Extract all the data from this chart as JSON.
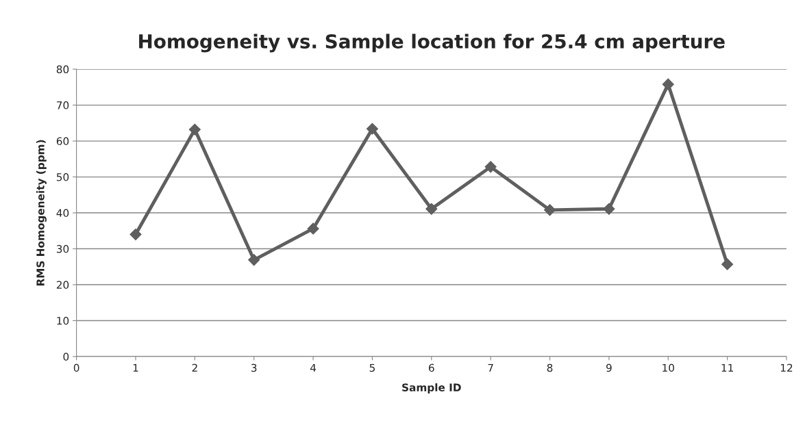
{
  "chart_data": {
    "type": "line",
    "title": "Homogeneity vs. Sample location for 25.4 cm aperture",
    "xlabel": "Sample ID",
    "ylabel": "RMS Homogeneity (ppm)",
    "x": [
      1,
      2,
      3,
      4,
      5,
      6,
      7,
      8,
      9,
      10,
      11
    ],
    "series": [
      {
        "color": "#5f5f5f",
        "values": [
          34,
          63.2,
          26.9,
          35.6,
          63.4,
          41.1,
          52.8,
          40.8,
          41.1,
          75.8,
          25.7
        ]
      }
    ],
    "xlim": [
      0,
      12
    ],
    "xticks": [
      0,
      1,
      2,
      3,
      4,
      5,
      6,
      7,
      8,
      9,
      10,
      11,
      12
    ],
    "ylim": [
      0,
      80
    ],
    "yticks": [
      0,
      10,
      20,
      30,
      40,
      50,
      60,
      70,
      80
    ],
    "grid": "y",
    "marker": "diamond",
    "line_style": "solid",
    "legend": false
  }
}
